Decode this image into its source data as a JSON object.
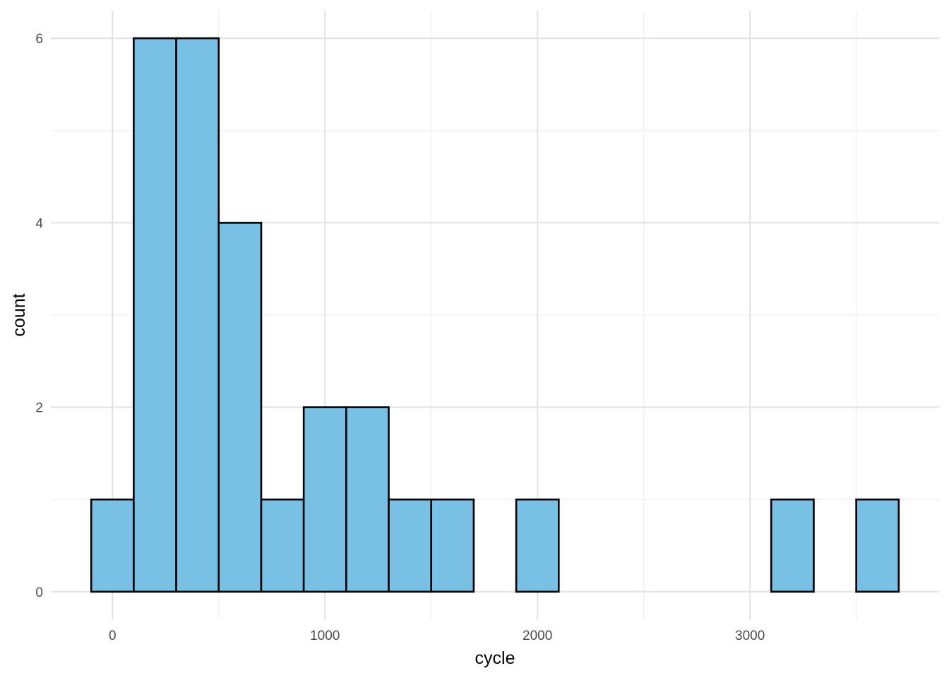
{
  "chart_data": {
    "type": "bar",
    "subtype": "histogram",
    "xlabel": "cycle",
    "ylabel": "count",
    "bin_width": 200,
    "bins": [
      {
        "x0": -100,
        "x1": 100,
        "count": 1
      },
      {
        "x0": 100,
        "x1": 300,
        "count": 6
      },
      {
        "x0": 300,
        "x1": 500,
        "count": 6
      },
      {
        "x0": 500,
        "x1": 700,
        "count": 4
      },
      {
        "x0": 700,
        "x1": 900,
        "count": 1
      },
      {
        "x0": 900,
        "x1": 1100,
        "count": 2
      },
      {
        "x0": 1100,
        "x1": 1300,
        "count": 2
      },
      {
        "x0": 1300,
        "x1": 1500,
        "count": 1
      },
      {
        "x0": 1500,
        "x1": 1700,
        "count": 1
      },
      {
        "x0": 1700,
        "x1": 1900,
        "count": 0
      },
      {
        "x0": 1900,
        "x1": 2100,
        "count": 1
      },
      {
        "x0": 2100,
        "x1": 2300,
        "count": 0
      },
      {
        "x0": 2300,
        "x1": 2500,
        "count": 0
      },
      {
        "x0": 2500,
        "x1": 2700,
        "count": 0
      },
      {
        "x0": 2700,
        "x1": 2900,
        "count": 0
      },
      {
        "x0": 2900,
        "x1": 3100,
        "count": 0
      },
      {
        "x0": 3100,
        "x1": 3300,
        "count": 1
      },
      {
        "x0": 3300,
        "x1": 3500,
        "count": 0
      },
      {
        "x0": 3500,
        "x1": 3700,
        "count": 1
      }
    ],
    "xlim": [
      -290,
      3890
    ],
    "ylim": [
      -0.3,
      6.3
    ],
    "x_ticks": [
      0,
      1000,
      2000,
      3000
    ],
    "x_tick_labels": [
      "0",
      "1000",
      "2000",
      "3000"
    ],
    "x_minor_ticks": [
      500,
      1500,
      2500,
      3500
    ],
    "y_ticks": [
      0,
      2,
      4,
      6
    ],
    "y_tick_labels": [
      "0",
      "2",
      "4",
      "6"
    ],
    "y_minor_ticks": [
      1,
      3,
      5
    ],
    "grid": true,
    "legend": "none",
    "colors": {
      "bar_fill": "#78c1e4",
      "bar_stroke": "#000000",
      "grid_major": "#e4e4e4",
      "grid_minor": "#f0f0f0"
    }
  }
}
